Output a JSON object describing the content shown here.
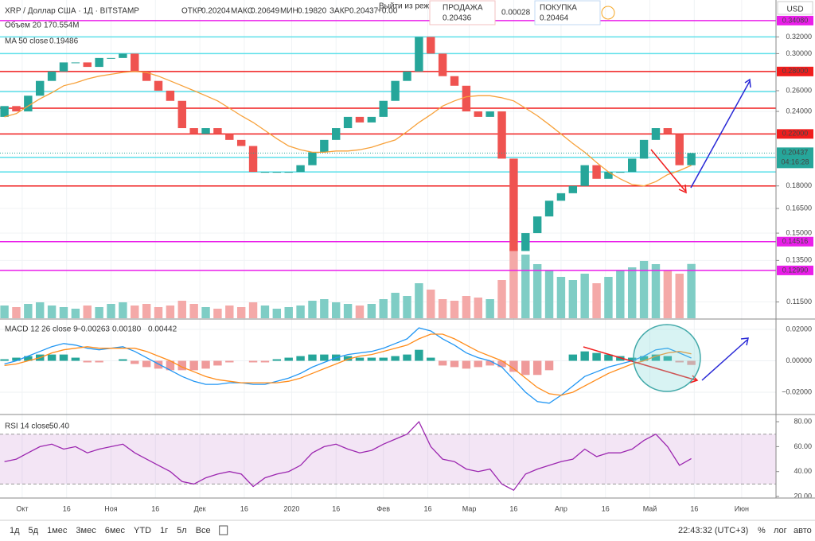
{
  "header": {
    "symbol": "XRP / Доллар США · 1Д · BITSTAMP",
    "ohlc": [
      [
        "ОТКР",
        "0.20204"
      ],
      [
        "МАКС",
        "0.20649"
      ],
      [
        "МИН",
        "0.19820"
      ],
      [
        "ЗАКР",
        "0.20437"
      ]
    ],
    "change": "+0.00",
    "exit_hint": "Выйти из режима (ESC)",
    "sell_label": "ПРОДАЖА",
    "sell": "0.20436",
    "spread": "0.00028",
    "buy_label": "ПОКУПКА",
    "buy": "0.20464",
    "currency": "USD"
  },
  "chart_data": {
    "type": "candlestick",
    "log_scale": true,
    "xlim": [
      -0.375,
      65.15
    ],
    "xticks": [
      {
        "value": 1.5,
        "label": "Окт"
      },
      {
        "value": 5.25,
        "label": "16"
      },
      {
        "value": 9,
        "label": "Ноя"
      },
      {
        "value": 12.75,
        "label": "16"
      },
      {
        "value": 16.5,
        "label": "Дек"
      },
      {
        "value": 20.25,
        "label": "16"
      },
      {
        "value": 24.25,
        "label": "2020"
      },
      {
        "value": 28,
        "label": "16"
      },
      {
        "value": 32,
        "label": "Фев"
      },
      {
        "value": 35.75,
        "label": "16"
      },
      {
        "value": 39.25,
        "label": "Мар"
      },
      {
        "value": 43,
        "label": "16"
      },
      {
        "value": 47,
        "label": "Апр"
      },
      {
        "value": 50.75,
        "label": "16"
      },
      {
        "value": 54.5,
        "label": "Май"
      },
      {
        "value": 58.25,
        "label": "16"
      },
      {
        "value": 62.25,
        "label": "Июн"
      }
    ],
    "ylim": [
      0.108,
      0.369
    ],
    "yticks": [
      {
        "value": 0.32,
        "label": "0.32000"
      },
      {
        "value": 0.3,
        "label": "0.30000"
      },
      {
        "value": 0.26,
        "label": "0.26000"
      },
      {
        "value": 0.24,
        "label": "0.24000"
      },
      {
        "value": 0.18,
        "label": "0.18000"
      },
      {
        "value": 0.165,
        "label": "0.16500"
      },
      {
        "value": 0.15,
        "label": "0.15000"
      },
      {
        "value": 0.135,
        "label": "0.13500"
      },
      {
        "value": 0.115,
        "label": "0.11500"
      }
    ],
    "up_color": "#26a69a",
    "down_color": "#ef5350",
    "open": [
      0.235,
      0.245,
      0.24,
      0.255,
      0.27,
      0.28,
      0.29,
      0.29,
      0.285,
      0.295,
      0.295,
      0.3,
      0.28,
      0.27,
      0.26,
      0.25,
      0.225,
      0.22,
      0.225,
      0.22,
      0.215,
      0.21,
      0.19,
      0.19,
      0.19,
      0.19,
      0.195,
      0.205,
      0.215,
      0.225,
      0.235,
      0.23,
      0.235,
      0.25,
      0.27,
      0.28,
      0.32,
      0.3,
      0.275,
      0.265,
      0.24,
      0.235,
      0.24,
      0.2,
      0.14,
      0.15,
      0.16,
      0.17,
      0.175,
      0.18,
      0.195,
      0.185,
      0.19,
      0.19,
      0.2,
      0.215,
      0.225,
      0.22,
      0.195
    ],
    "close": [
      0.245,
      0.24,
      0.255,
      0.27,
      0.28,
      0.29,
      0.29,
      0.285,
      0.295,
      0.295,
      0.3,
      0.28,
      0.27,
      0.26,
      0.25,
      0.225,
      0.22,
      0.225,
      0.22,
      0.215,
      0.21,
      0.19,
      0.19,
      0.19,
      0.19,
      0.195,
      0.205,
      0.215,
      0.225,
      0.235,
      0.23,
      0.235,
      0.25,
      0.27,
      0.28,
      0.32,
      0.3,
      0.275,
      0.265,
      0.24,
      0.235,
      0.24,
      0.2,
      0.14,
      0.15,
      0.16,
      0.17,
      0.175,
      0.18,
      0.195,
      0.185,
      0.19,
      0.19,
      0.2,
      0.215,
      0.225,
      0.22,
      0.195,
      0.20437
    ],
    "ma": {
      "name": "MA 50 close",
      "legend_value": "0.19486",
      "color": "#f7a13a",
      "values": [
        0.235,
        0.238,
        0.245,
        0.252,
        0.258,
        0.265,
        0.268,
        0.272,
        0.275,
        0.277,
        0.279,
        0.28,
        0.279,
        0.275,
        0.27,
        0.265,
        0.26,
        0.255,
        0.25,
        0.243,
        0.236,
        0.23,
        0.223,
        0.216,
        0.21,
        0.207,
        0.205,
        0.205,
        0.206,
        0.206,
        0.207,
        0.209,
        0.212,
        0.215,
        0.222,
        0.23,
        0.237,
        0.245,
        0.25,
        0.254,
        0.255,
        0.255,
        0.253,
        0.25,
        0.243,
        0.236,
        0.228,
        0.22,
        0.212,
        0.205,
        0.197,
        0.19,
        0.185,
        0.181,
        0.18,
        0.183,
        0.188,
        0.191,
        0.19486
      ]
    },
    "volume": {
      "name": "Объем 20",
      "legend_value": "170.554M",
      "ylim": [
        0,
        1000
      ],
      "values": [
        40,
        35,
        45,
        50,
        40,
        35,
        30,
        40,
        35,
        45,
        50,
        40,
        45,
        35,
        40,
        55,
        45,
        35,
        30,
        40,
        35,
        50,
        40,
        30,
        35,
        40,
        55,
        60,
        50,
        45,
        40,
        45,
        60,
        80,
        70,
        110,
        90,
        60,
        55,
        70,
        65,
        60,
        120,
        220,
        200,
        170,
        150,
        130,
        120,
        140,
        110,
        130,
        150,
        160,
        180,
        170,
        150,
        140,
        170.554
      ]
    },
    "levels": [
      {
        "value": 0.3408,
        "label": "0.34080",
        "color": "#e91ee9"
      },
      {
        "value": 0.32,
        "color": "#5ee0ea"
      },
      {
        "value": 0.3,
        "color": "#5ee0ea"
      },
      {
        "value": 0.28,
        "label": "0.28000",
        "color": "#f01d1d"
      },
      {
        "value": 0.259,
        "color": "#5ee0ea"
      },
      {
        "value": 0.243,
        "color": "#f01d1d"
      },
      {
        "value": 0.22,
        "label": "0.22000",
        "color": "#f01d1d"
      },
      {
        "value": 0.201,
        "color": "#5ee0ea"
      },
      {
        "value": 0.19,
        "color": "#5ee0ea"
      },
      {
        "value": 0.18,
        "color": "#f01d1d"
      },
      {
        "value": 0.14516,
        "label": "0.14516",
        "color": "#e91ee9"
      },
      {
        "value": 0.1299,
        "label": "0.12990",
        "color": "#e91ee9"
      }
    ],
    "price_tag": {
      "value": 0.20437,
      "label": "0.20437",
      "countdown": "04:16:28",
      "color": "#26a69a"
    },
    "macd": {
      "name": "MACD 12 26 close 9",
      "legend": [
        "−0.00263",
        "0.00180",
        "0.00442"
      ],
      "ylim": [
        -0.0337,
        0.0256
      ],
      "yticks": [
        {
          "value": 0.02,
          "label": "0.02000"
        },
        {
          "value": 0,
          "label": "0.00000"
        },
        {
          "value": -0.02,
          "label": "−0.02000"
        }
      ],
      "macd_color": "#2196f3",
      "signal_color": "#ff8c1a",
      "macd": [
        -0.002,
        0.0,
        0.003,
        0.006,
        0.009,
        0.011,
        0.01,
        0.008,
        0.007,
        0.008,
        0.009,
        0.006,
        0.002,
        -0.002,
        -0.006,
        -0.01,
        -0.013,
        -0.015,
        -0.015,
        -0.014,
        -0.014,
        -0.015,
        -0.015,
        -0.013,
        -0.011,
        -0.008,
        -0.004,
        -0.001,
        0.002,
        0.004,
        0.005,
        0.006,
        0.008,
        0.011,
        0.014,
        0.021,
        0.019,
        0.014,
        0.01,
        0.005,
        0.002,
        0.0,
        -0.004,
        -0.012,
        -0.02,
        -0.026,
        -0.027,
        -0.022,
        -0.016,
        -0.01,
        -0.007,
        -0.004,
        -0.002,
        0.0,
        0.003,
        0.007,
        0.008,
        0.005,
        0.0018
      ],
      "signal": [
        -0.003,
        -0.002,
        0.0,
        0.002,
        0.005,
        0.007,
        0.008,
        0.009,
        0.008,
        0.008,
        0.008,
        0.008,
        0.006,
        0.003,
        0.0,
        -0.004,
        -0.007,
        -0.01,
        -0.012,
        -0.013,
        -0.014,
        -0.014,
        -0.014,
        -0.014,
        -0.013,
        -0.011,
        -0.008,
        -0.005,
        -0.002,
        0.001,
        0.003,
        0.004,
        0.006,
        0.008,
        0.01,
        0.014,
        0.017,
        0.017,
        0.014,
        0.01,
        0.006,
        0.003,
        0.0,
        -0.005,
        -0.011,
        -0.017,
        -0.021,
        -0.022,
        -0.02,
        -0.016,
        -0.012,
        -0.008,
        -0.005,
        -0.002,
        0.0,
        0.003,
        0.005,
        0.006,
        0.00442
      ],
      "histogram": [
        0.001,
        0.002,
        0.003,
        0.004,
        0.004,
        0.004,
        0.002,
        -0.001,
        -0.001,
        0.0,
        0.001,
        -0.002,
        -0.004,
        -0.005,
        -0.006,
        -0.006,
        -0.006,
        -0.005,
        -0.003,
        -0.001,
        0.0,
        -0.001,
        -0.001,
        0.001,
        0.002,
        0.003,
        0.004,
        0.004,
        0.004,
        0.003,
        0.002,
        0.002,
        0.002,
        0.003,
        0.004,
        0.007,
        0.002,
        -0.003,
        -0.004,
        -0.005,
        -0.004,
        -0.003,
        -0.004,
        -0.007,
        -0.009,
        -0.009,
        -0.006,
        0.0,
        0.004,
        0.006,
        0.005,
        0.004,
        0.003,
        0.002,
        0.003,
        0.004,
        0.003,
        -0.001,
        -0.00263
      ]
    },
    "rsi": {
      "name": "RSI 14 close",
      "legend_value": "50.40",
      "color": "#9c27b0",
      "ylim": [
        19.4,
        84.5
      ],
      "band": [
        30,
        70
      ],
      "yticks": [
        {
          "value": 80,
          "label": "80.00"
        },
        {
          "value": 60,
          "label": "60.00"
        },
        {
          "value": 40,
          "label": "40.00"
        },
        {
          "value": 20,
          "label": "20.00"
        }
      ],
      "values": [
        48,
        50,
        55,
        60,
        62,
        58,
        60,
        55,
        58,
        60,
        62,
        55,
        50,
        45,
        40,
        32,
        30,
        35,
        38,
        40,
        38,
        28,
        35,
        38,
        40,
        45,
        55,
        60,
        62,
        58,
        55,
        57,
        62,
        66,
        70,
        80,
        60,
        50,
        48,
        42,
        40,
        42,
        30,
        25,
        38,
        42,
        45,
        48,
        50,
        58,
        52,
        55,
        55,
        58,
        65,
        70,
        60,
        45,
        50.4
      ]
    }
  },
  "toolbar": {
    "ranges": [
      "1д",
      "5д",
      "1мес",
      "3мес",
      "6мес",
      "YTD",
      "1г",
      "5л",
      "Все"
    ],
    "clock": "22:43:32 (UTC+3)",
    "options": [
      "%",
      "лог",
      "авто"
    ]
  }
}
